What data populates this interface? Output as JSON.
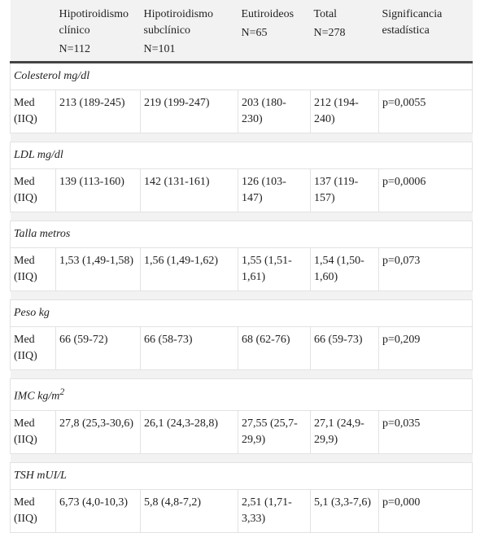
{
  "table": {
    "header": [
      {
        "name": "Hipotiroidismo clínico",
        "n": "N=112"
      },
      {
        "name": "Hipotiroidismo subclínico",
        "n": "N=101"
      },
      {
        "name": "Eutiroideos",
        "n": "N=65"
      },
      {
        "name": "Total",
        "n": "N=278"
      },
      {
        "name": "Significancia estadística"
      }
    ],
    "sections": [
      {
        "title": "Colesterol mg/dl",
        "row": [
          "Med (IIQ)",
          "213 (189-245)",
          "219 (199-247)",
          "203 (180-230)",
          "212 (194-240)",
          "p=0,0055"
        ]
      },
      {
        "title": "LDL mg/dl",
        "row": [
          "Med (IIQ)",
          "139 (113-160)",
          "142 (131-161)",
          "126 (103-147)",
          "137 (119-157)",
          "p=0,0006"
        ]
      },
      {
        "title": "Talla metros",
        "row": [
          "Med (IIQ)",
          "1,53 (1,49-1,58)",
          "1,56 (1,49-1,62)",
          "1,55 (1,51-1,61)",
          "1,54 (1,50-1,60)",
          "p=0,073"
        ]
      },
      {
        "title": "Peso kg",
        "row": [
          "Med (IIQ)",
          "66 (59-72)",
          "66 (58-73)",
          "68 (62-76)",
          "66 (59-73)",
          "p=0,209"
        ]
      },
      {
        "title": "IMC kg/m",
        "title_sup": "2",
        "row": [
          "Med (IIQ)",
          "27,8 (25,3-30,6)",
          "26,1 (24,3-28,8)",
          "27,55 (25,7-29,9)",
          "27,1 (24,9-29,9)",
          "p=0,035"
        ]
      },
      {
        "title": "TSH mUI/L",
        "row": [
          "Med (IIQ)",
          "6,73 (4,0-10,3)",
          "5,8 (4,8-7,2)",
          "2,51 (1,71-3,33)",
          "5,1 (3,3-7,6)",
          "p=0,000"
        ]
      }
    ]
  }
}
